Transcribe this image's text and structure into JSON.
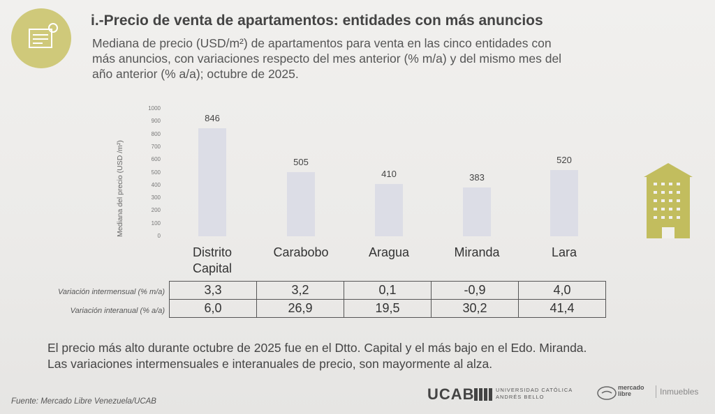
{
  "header": {
    "title": "i.-Precio de venta de apartamentos: entidades con más anuncios",
    "subtitle_lines": [
      "Mediana de precio (USD/m²) de apartamentos para venta en las cinco entidades con",
      "más anuncios, con variaciones respecto del mes anterior (% m/a) y del mismo mes del",
      "año anterior (% a/a); octubre de 2025."
    ]
  },
  "chart_data": {
    "type": "bar",
    "categories": [
      "Distrito Capital",
      "Carabobo",
      "Aragua",
      "Miranda",
      "Lara"
    ],
    "values": [
      846,
      505,
      410,
      383,
      520
    ],
    "value_labels": [
      "846",
      "505",
      "410",
      "383",
      "520"
    ],
    "ylabel": "Mediana del precio (USD /m²)",
    "ylim": [
      0,
      1000
    ],
    "yticks": [
      "0",
      "100",
      "200",
      "300",
      "400",
      "500",
      "600",
      "700",
      "800",
      "900",
      "1000"
    ],
    "color": "#dcdde6"
  },
  "category_display": [
    [
      "Distrito",
      "Capital"
    ],
    [
      "Carabobo"
    ],
    [
      "Aragua"
    ],
    [
      "Miranda"
    ],
    [
      "Lara"
    ]
  ],
  "table": {
    "rows": [
      {
        "label": "Variación intermensual (% m/a)",
        "values": [
          "3,3",
          "3,2",
          "0,1",
          "-0,9",
          "4,0"
        ]
      },
      {
        "label": "Variación interanual (% a/a)",
        "values": [
          "6,0",
          "26,9",
          "19,5",
          "30,2",
          "41,4"
        ]
      }
    ]
  },
  "conclusion": [
    "El precio más alto durante octubre de 2025 fue en el Dtto. Capital y el más bajo en el Edo. Miranda.",
    "Las variaciones intermensuales e interanuales de precio, son mayormente al alza."
  ],
  "footer": {
    "source": "Fuente: Mercado Libre Venezuela/UCAB",
    "ucab": "UCAB",
    "ucab_sub1": "UNIVERSIDAD CATÓLICA",
    "ucab_sub2": "ANDRÉS BELLO",
    "ml1": "mercado",
    "ml2": "libre",
    "inmuebles": "Inmuebles"
  },
  "colors": {
    "accent": "#cfc97a",
    "bar": "#dcdde6",
    "building": "#c2bd5e"
  }
}
